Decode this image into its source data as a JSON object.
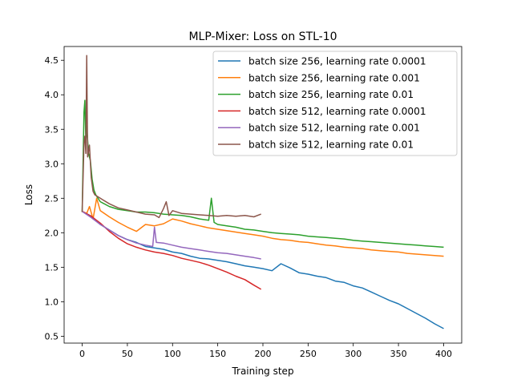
{
  "chart_data": {
    "type": "line",
    "title": "MLP-Mixer: Loss on STL-10",
    "xlabel": "Training step",
    "ylabel": "Loss",
    "xlim": [
      -20,
      420
    ],
    "ylim": [
      0.4,
      4.7
    ],
    "xticks": [
      0,
      50,
      100,
      150,
      200,
      250,
      300,
      350,
      400
    ],
    "yticks": [
      0.5,
      1.0,
      1.5,
      2.0,
      2.5,
      3.0,
      3.5,
      4.0,
      4.5
    ],
    "xtick_labels": [
      "0",
      "50",
      "100",
      "150",
      "200",
      "250",
      "300",
      "350",
      "400"
    ],
    "ytick_labels": [
      "0.5",
      "1.0",
      "1.5",
      "2.0",
      "2.5",
      "3.0",
      "3.5",
      "4.0",
      "4.5"
    ],
    "grid": false,
    "legend_position": "top-right",
    "series": [
      {
        "name": "batch size 256, learning rate 0.0001",
        "color": "#1f77b4",
        "points": [
          [
            0,
            2.31
          ],
          [
            10,
            2.24
          ],
          [
            20,
            2.12
          ],
          [
            30,
            2.04
          ],
          [
            40,
            1.96
          ],
          [
            50,
            1.9
          ],
          [
            60,
            1.86
          ],
          [
            70,
            1.8
          ],
          [
            80,
            1.78
          ],
          [
            90,
            1.76
          ],
          [
            100,
            1.72
          ],
          [
            110,
            1.7
          ],
          [
            120,
            1.66
          ],
          [
            130,
            1.63
          ],
          [
            140,
            1.62
          ],
          [
            150,
            1.6
          ],
          [
            160,
            1.58
          ],
          [
            170,
            1.55
          ],
          [
            180,
            1.52
          ],
          [
            190,
            1.5
          ],
          [
            200,
            1.48
          ],
          [
            210,
            1.45
          ],
          [
            220,
            1.55
          ],
          [
            230,
            1.49
          ],
          [
            240,
            1.42
          ],
          [
            250,
            1.4
          ],
          [
            260,
            1.37
          ],
          [
            270,
            1.35
          ],
          [
            280,
            1.3
          ],
          [
            290,
            1.28
          ],
          [
            300,
            1.23
          ],
          [
            310,
            1.2
          ],
          [
            320,
            1.14
          ],
          [
            330,
            1.08
          ],
          [
            340,
            1.02
          ],
          [
            350,
            0.97
          ],
          [
            360,
            0.9
          ],
          [
            370,
            0.83
          ],
          [
            380,
            0.76
          ],
          [
            390,
            0.68
          ],
          [
            400,
            0.61
          ]
        ]
      },
      {
        "name": "batch size 256, learning rate 0.001",
        "color": "#ff7f0e",
        "points": [
          [
            0,
            2.31
          ],
          [
            5,
            2.28
          ],
          [
            8,
            2.38
          ],
          [
            12,
            2.2
          ],
          [
            16,
            2.5
          ],
          [
            20,
            2.32
          ],
          [
            30,
            2.23
          ],
          [
            40,
            2.15
          ],
          [
            50,
            2.08
          ],
          [
            60,
            2.02
          ],
          [
            70,
            2.12
          ],
          [
            80,
            2.1
          ],
          [
            90,
            2.13
          ],
          [
            100,
            2.2
          ],
          [
            110,
            2.17
          ],
          [
            120,
            2.13
          ],
          [
            130,
            2.1
          ],
          [
            140,
            2.07
          ],
          [
            150,
            2.05
          ],
          [
            160,
            2.03
          ],
          [
            170,
            2.01
          ],
          [
            180,
            1.99
          ],
          [
            190,
            1.97
          ],
          [
            200,
            1.95
          ],
          [
            210,
            1.92
          ],
          [
            220,
            1.9
          ],
          [
            230,
            1.89
          ],
          [
            240,
            1.87
          ],
          [
            250,
            1.86
          ],
          [
            260,
            1.84
          ],
          [
            270,
            1.82
          ],
          [
            280,
            1.81
          ],
          [
            290,
            1.79
          ],
          [
            300,
            1.78
          ],
          [
            310,
            1.77
          ],
          [
            320,
            1.75
          ],
          [
            330,
            1.74
          ],
          [
            340,
            1.73
          ],
          [
            350,
            1.72
          ],
          [
            360,
            1.7
          ],
          [
            370,
            1.69
          ],
          [
            380,
            1.68
          ],
          [
            390,
            1.67
          ],
          [
            400,
            1.66
          ]
        ]
      },
      {
        "name": "batch size 256, learning rate 0.01",
        "color": "#2ca02c",
        "points": [
          [
            0,
            2.3
          ],
          [
            2,
            3.75
          ],
          [
            3,
            3.92
          ],
          [
            4,
            3.3
          ],
          [
            5,
            3.55
          ],
          [
            7,
            3.15
          ],
          [
            9,
            3.05
          ],
          [
            11,
            2.78
          ],
          [
            13,
            2.62
          ],
          [
            15,
            2.55
          ],
          [
            20,
            2.45
          ],
          [
            30,
            2.38
          ],
          [
            40,
            2.34
          ],
          [
            50,
            2.32
          ],
          [
            60,
            2.3
          ],
          [
            70,
            2.3
          ],
          [
            80,
            2.29
          ],
          [
            90,
            2.27
          ],
          [
            100,
            2.26
          ],
          [
            110,
            2.25
          ],
          [
            120,
            2.23
          ],
          [
            130,
            2.2
          ],
          [
            140,
            2.18
          ],
          [
            143,
            2.5
          ],
          [
            146,
            2.15
          ],
          [
            150,
            2.12
          ],
          [
            160,
            2.1
          ],
          [
            170,
            2.08
          ],
          [
            180,
            2.05
          ],
          [
            190,
            2.04
          ],
          [
            200,
            2.02
          ],
          [
            210,
            2.0
          ],
          [
            220,
            1.99
          ],
          [
            230,
            1.98
          ],
          [
            240,
            1.97
          ],
          [
            250,
            1.95
          ],
          [
            260,
            1.94
          ],
          [
            270,
            1.93
          ],
          [
            280,
            1.92
          ],
          [
            290,
            1.91
          ],
          [
            300,
            1.89
          ],
          [
            310,
            1.88
          ],
          [
            320,
            1.87
          ],
          [
            330,
            1.86
          ],
          [
            340,
            1.85
          ],
          [
            350,
            1.84
          ],
          [
            360,
            1.83
          ],
          [
            370,
            1.82
          ],
          [
            380,
            1.81
          ],
          [
            390,
            1.8
          ],
          [
            400,
            1.79
          ]
        ]
      },
      {
        "name": "batch size 512, learning rate 0.0001",
        "color": "#d62728",
        "points": [
          [
            0,
            2.31
          ],
          [
            10,
            2.24
          ],
          [
            20,
            2.14
          ],
          [
            30,
            2.02
          ],
          [
            40,
            1.92
          ],
          [
            50,
            1.84
          ],
          [
            60,
            1.79
          ],
          [
            70,
            1.75
          ],
          [
            80,
            1.72
          ],
          [
            90,
            1.7
          ],
          [
            100,
            1.67
          ],
          [
            110,
            1.63
          ],
          [
            120,
            1.6
          ],
          [
            130,
            1.57
          ],
          [
            140,
            1.53
          ],
          [
            150,
            1.48
          ],
          [
            160,
            1.43
          ],
          [
            170,
            1.37
          ],
          [
            180,
            1.32
          ],
          [
            190,
            1.24
          ],
          [
            198,
            1.18
          ]
        ]
      },
      {
        "name": "batch size 512, learning rate 0.001",
        "color": "#9467bd",
        "points": [
          [
            0,
            2.31
          ],
          [
            10,
            2.22
          ],
          [
            20,
            2.12
          ],
          [
            30,
            2.04
          ],
          [
            40,
            1.96
          ],
          [
            50,
            1.9
          ],
          [
            60,
            1.85
          ],
          [
            70,
            1.82
          ],
          [
            78,
            1.8
          ],
          [
            80,
            2.08
          ],
          [
            82,
            1.86
          ],
          [
            90,
            1.85
          ],
          [
            100,
            1.82
          ],
          [
            110,
            1.79
          ],
          [
            120,
            1.77
          ],
          [
            130,
            1.75
          ],
          [
            140,
            1.73
          ],
          [
            150,
            1.71
          ],
          [
            160,
            1.7
          ],
          [
            170,
            1.68
          ],
          [
            180,
            1.66
          ],
          [
            190,
            1.64
          ],
          [
            198,
            1.62
          ]
        ]
      },
      {
        "name": "batch size 512, learning rate 0.01",
        "color": "#8c564b",
        "points": [
          [
            0,
            2.3
          ],
          [
            2,
            3.3
          ],
          [
            3,
            3.4
          ],
          [
            4,
            3.15
          ],
          [
            5,
            4.57
          ],
          [
            6,
            3.1
          ],
          [
            8,
            3.27
          ],
          [
            10,
            2.8
          ],
          [
            12,
            2.6
          ],
          [
            14,
            2.55
          ],
          [
            20,
            2.5
          ],
          [
            30,
            2.42
          ],
          [
            40,
            2.36
          ],
          [
            50,
            2.33
          ],
          [
            60,
            2.3
          ],
          [
            70,
            2.27
          ],
          [
            80,
            2.26
          ],
          [
            85,
            2.22
          ],
          [
            90,
            2.35
          ],
          [
            93,
            2.45
          ],
          [
            96,
            2.25
          ],
          [
            100,
            2.32
          ],
          [
            110,
            2.28
          ],
          [
            120,
            2.27
          ],
          [
            130,
            2.26
          ],
          [
            140,
            2.25
          ],
          [
            150,
            2.24
          ],
          [
            160,
            2.25
          ],
          [
            170,
            2.24
          ],
          [
            180,
            2.25
          ],
          [
            190,
            2.23
          ],
          [
            198,
            2.27
          ]
        ]
      }
    ]
  }
}
